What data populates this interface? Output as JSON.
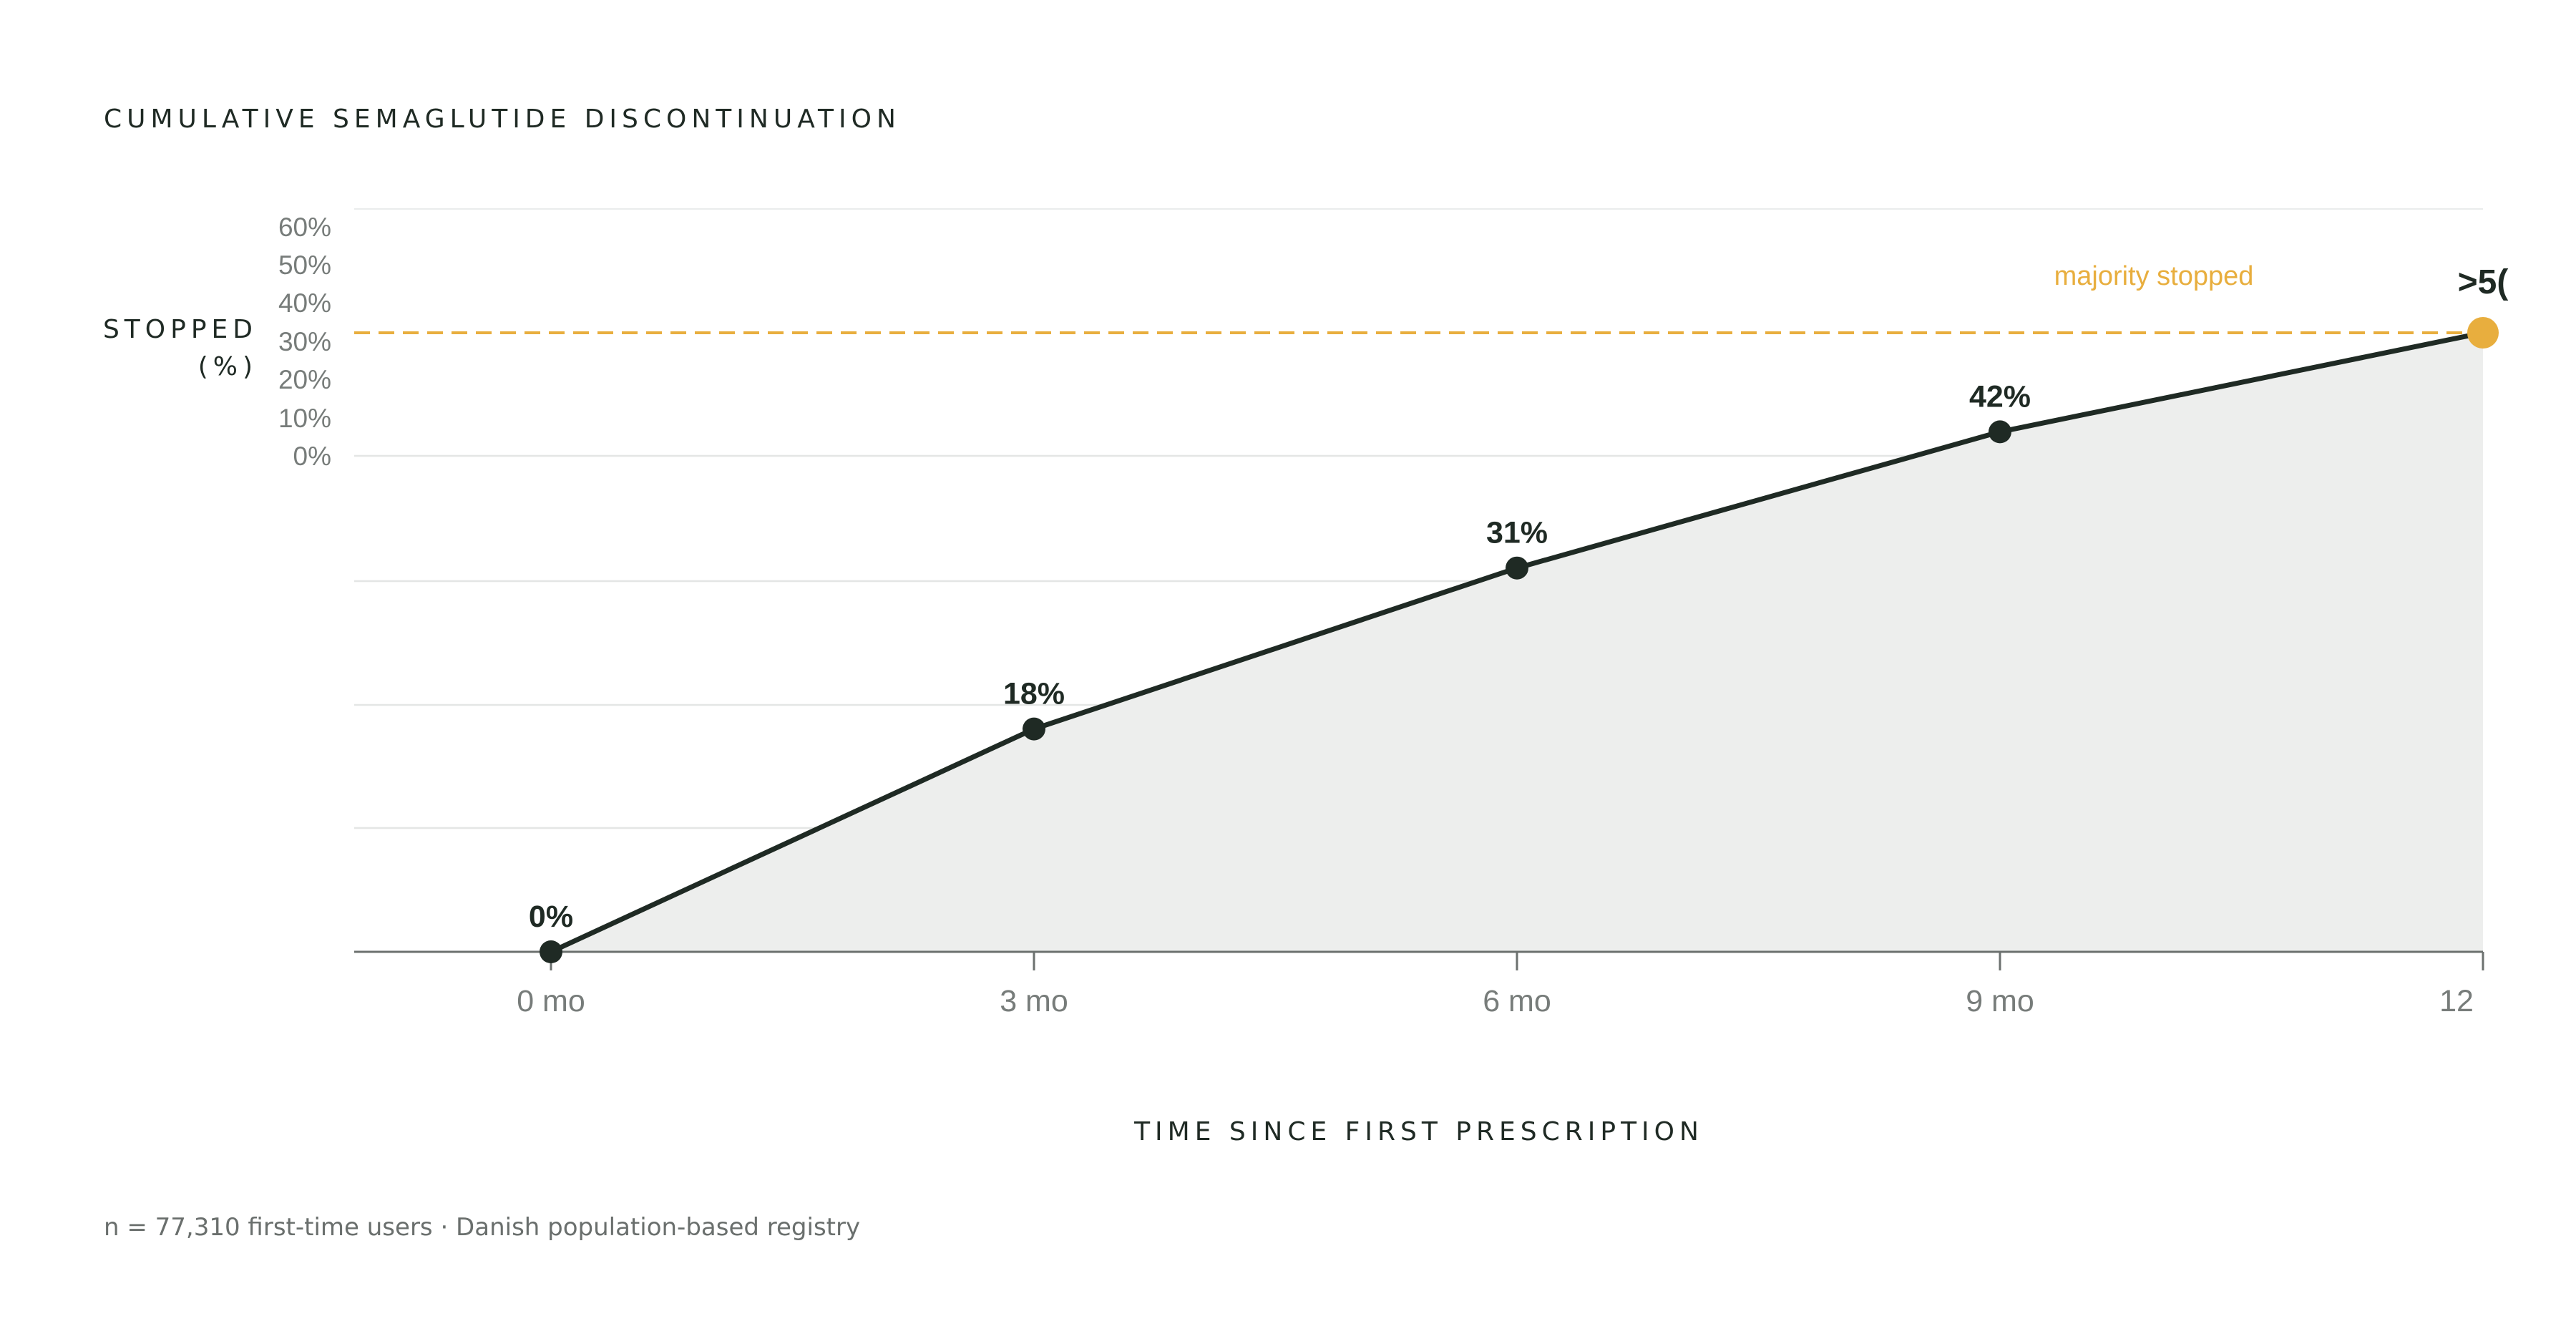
{
  "colors": {
    "line": "#1f2a24",
    "area": "#edeeed",
    "grid": "#e4e6e5",
    "axis": "#6c716f",
    "accent": "#e8ae3e",
    "text": "#1f2a24",
    "muted": "#777c7a"
  },
  "chart_data": {
    "type": "area",
    "title": "CUMULATIVE SEMAGLUTIDE DISCONTINUATION",
    "ylabel_line1": "STOPPED",
    "ylabel_line2": "(%)",
    "xlabel": "TIME SINCE FIRST PRESCRIPTION",
    "x": [
      0,
      3,
      6,
      9,
      12
    ],
    "x_tick_labels": [
      "0 mo",
      "3 mo",
      "6 mo",
      "9 mo",
      "12"
    ],
    "values": [
      0,
      18,
      31,
      42,
      50
    ],
    "data_labels": [
      "0%",
      "18%",
      "31%",
      "42%",
      ">5("
    ],
    "y_tick_labels": [
      "60%",
      "50%",
      "40%",
      "30%",
      "20%",
      "10%",
      "0%"
    ],
    "threshold": {
      "value": 50,
      "label": "majority stopped"
    },
    "grid": true,
    "footnote": "n = 77,310 first-time users · Danish population-based registry"
  }
}
